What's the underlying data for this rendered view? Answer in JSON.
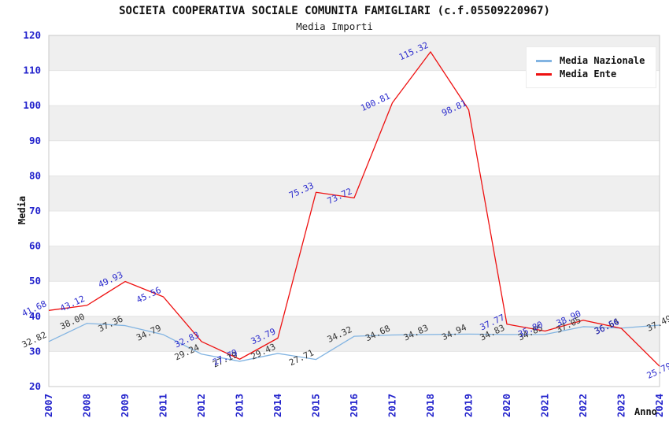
{
  "title": "SOCIETA COOPERATIVA SOCIALE COMUNITA FAMIGLIARI (c.f.05509220967)",
  "subtitle": "Media Importi",
  "colors": {
    "nazionale_line": "#82b4e2",
    "ente_line": "#ee1111",
    "tick_blue": "#2222cc",
    "nazionale_label": "#333333",
    "ente_label": "#2a2acd",
    "band_gray": "#efefef",
    "gridline": "#e4e4e4",
    "plot_border": "#c8c8c8"
  },
  "chart_data": {
    "type": "line",
    "title": "SOCIETA COOPERATIVA SOCIALE COMUNITA FAMIGLIARI (c.f.05509220967)",
    "subtitle": "Media Importi",
    "xlabel": "Anno",
    "ylabel": "Media",
    "x": [
      "2007",
      "2008",
      "2009",
      "2011",
      "2012",
      "2013",
      "2014",
      "2015",
      "2016",
      "2017",
      "2018",
      "2019",
      "2020",
      "2021",
      "2022",
      "2023",
      "2024"
    ],
    "series": [
      {
        "name": "Media Nazionale",
        "color": "#82b4e2",
        "label_color": "#333333",
        "values": [
          32.82,
          38.0,
          37.36,
          34.79,
          29.24,
          27.19,
          29.43,
          27.71,
          34.32,
          34.68,
          34.83,
          34.94,
          34.83,
          34.85,
          37.05,
          36.64,
          37.49
        ],
        "labels": [
          "32.82",
          "38.00",
          "37.36",
          "34.79",
          "29.24",
          "27.19",
          "29.43",
          "27.71",
          "34.32",
          "34.68",
          "34.83",
          "34.94",
          "34.83",
          "34.85",
          "37.05",
          "36.64",
          "37.49"
        ]
      },
      {
        "name": "Media Ente",
        "color": "#ee1111",
        "label_color": "#2a2acd",
        "values": [
          41.68,
          43.12,
          49.93,
          45.56,
          32.83,
          27.79,
          33.79,
          75.33,
          73.72,
          100.81,
          115.32,
          98.81,
          37.77,
          35.8,
          38.9,
          36.56,
          25.79
        ],
        "labels": [
          "41.68",
          "43.12",
          "49.93",
          "45.56",
          "32.83",
          "27.79",
          "33.79",
          "75.33",
          "73.72",
          "100.81",
          "115.32",
          "98.81",
          "37.77",
          "35.80",
          "38.90",
          "36.56",
          "25.79"
        ]
      }
    ],
    "ylim": [
      20,
      120
    ],
    "ytick_step": 10,
    "yticks": [
      "20",
      "30",
      "40",
      "50",
      "60",
      "70",
      "80",
      "90",
      "100",
      "110",
      "120"
    ],
    "grid": "horizontal-bands",
    "legend_position": "top-right"
  }
}
